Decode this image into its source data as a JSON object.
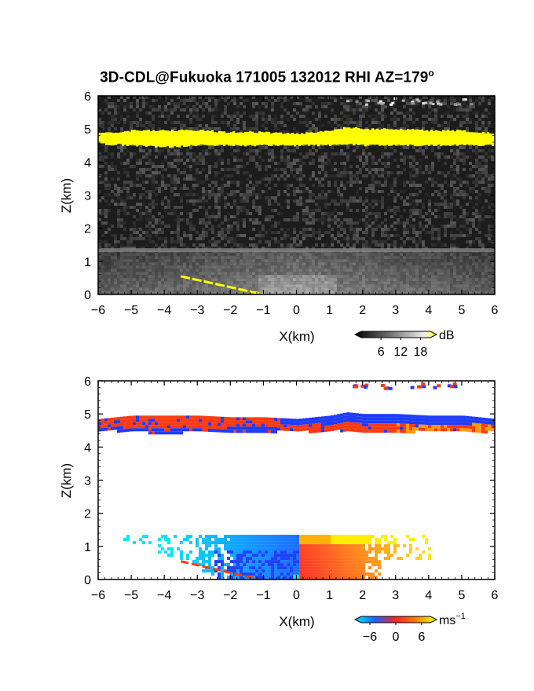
{
  "title": {
    "prefix": "3D-CDL@Fukuoka 171005 132012 RHI AZ=179",
    "degree": "o"
  },
  "colors": {
    "echo_yellow": "#ffff00",
    "noise_dark": "#1c1c1c",
    "velocity_negative": "#1e3cff",
    "velocity_positive": "#ff3a10",
    "velocity_cyan": "#00e8ff",
    "velocity_orange": "#ff9a00"
  },
  "chart_data": [
    {
      "type": "heatmap",
      "panel": "reflectivity",
      "xlabel": "X(km)",
      "ylabel": "Z(km)",
      "xlim": [
        -6,
        6
      ],
      "ylim": [
        0,
        6
      ],
      "xticks": [
        "−6",
        "−5",
        "−4",
        "−3",
        "−2",
        "−1",
        "0",
        "1",
        "2",
        "3",
        "4",
        "5",
        "6"
      ],
      "yticks": [
        "0",
        "1",
        "2",
        "3",
        "4",
        "5",
        "6"
      ],
      "colorbar": {
        "unit": "dB",
        "ticks": [
          "6",
          "12",
          "18"
        ],
        "range": [
          0,
          21
        ]
      },
      "features": {
        "upper_layer": {
          "x": [
            -6,
            -5,
            -4,
            -3,
            -2,
            -1,
            0,
            1,
            1.5,
            2,
            3,
            4,
            5,
            6
          ],
          "z_bottom": [
            4.55,
            4.5,
            4.45,
            4.5,
            4.5,
            4.5,
            4.5,
            4.5,
            4.55,
            4.5,
            4.5,
            4.5,
            4.5,
            4.5
          ],
          "z_top": [
            4.85,
            4.95,
            4.95,
            4.95,
            4.9,
            4.9,
            4.85,
            4.95,
            5.05,
            5.0,
            5.0,
            4.95,
            4.95,
            4.85
          ]
        },
        "boundary_layer_top_km": 1.35,
        "ground_line": {
          "x": [
            -3.5,
            -1.0
          ],
          "z": [
            0.55,
            0.0
          ]
        }
      }
    },
    {
      "type": "heatmap",
      "panel": "doppler_velocity",
      "xlabel": "X(km)",
      "ylabel": "Z(km)",
      "xlim": [
        -6,
        6
      ],
      "ylim": [
        0,
        6
      ],
      "xticks": [
        "−6",
        "−5",
        "−4",
        "−3",
        "−2",
        "−1",
        "0",
        "1",
        "2",
        "3",
        "4",
        "5",
        "6"
      ],
      "yticks": [
        "0",
        "1",
        "2",
        "3",
        "4",
        "5",
        "6"
      ],
      "colorbar": {
        "unit": "ms",
        "unit_exponent": "−1",
        "ticks": [
          "−6",
          "0",
          "6"
        ],
        "range": [
          -8,
          8
        ]
      },
      "features": {
        "upper_layer_zero_crossing_x_km": -0.5,
        "boundary_layer_top_km": 1.35,
        "boundary_layer_zero_crossing_x_km": 0.0
      }
    }
  ]
}
